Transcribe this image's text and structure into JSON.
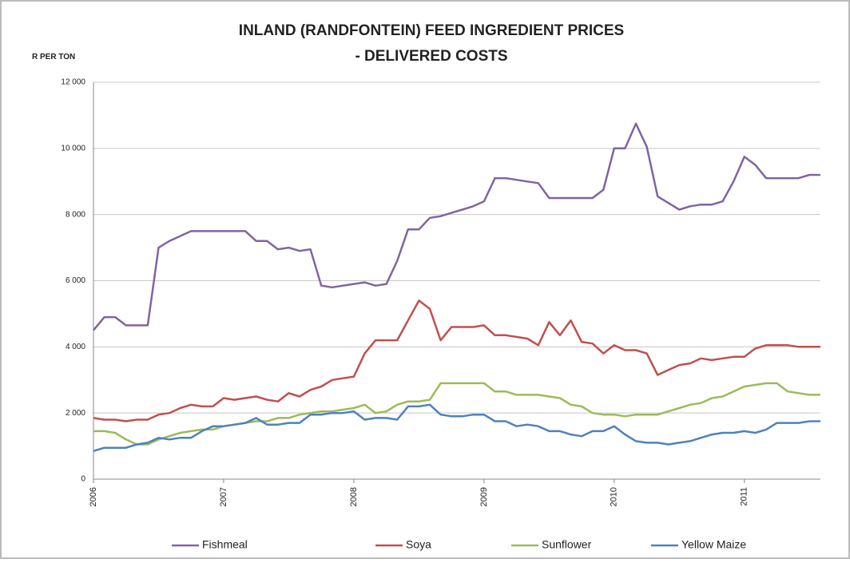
{
  "chart_data": {
    "type": "line",
    "title": "INLAND (RANDFONTEIN) FEED INGREDIENT PRICES",
    "subtitle": "- DELIVERED COSTS",
    "y_label": "R PER TON",
    "categories": [
      "2006",
      null,
      null,
      null,
      null,
      null,
      null,
      null,
      null,
      null,
      null,
      null,
      "2007",
      null,
      null,
      null,
      null,
      null,
      null,
      null,
      null,
      null,
      null,
      null,
      "2008",
      null,
      null,
      null,
      null,
      null,
      null,
      null,
      null,
      null,
      null,
      null,
      "2009",
      null,
      null,
      null,
      null,
      null,
      null,
      null,
      null,
      null,
      null,
      null,
      "2010",
      null,
      null,
      null,
      null,
      null,
      null,
      null,
      null,
      null,
      null,
      null,
      "2011",
      null,
      null,
      null,
      null,
      null,
      null,
      null
    ],
    "ylim": [
      0,
      12000
    ],
    "yticks": [
      0,
      {
        "value": 2000,
        "label": "2 000"
      },
      {
        "value": 4000,
        "label": "4 000"
      },
      {
        "value": 6000,
        "label": "6 000"
      },
      {
        "value": 8000,
        "label": "8 000"
      },
      {
        "value": 10000,
        "label": "10 000"
      },
      {
        "value": 12000,
        "label": "12 000"
      }
    ],
    "grid": true,
    "legend": "bottom",
    "series": [
      {
        "name": "Fishmeal",
        "color": "#8064a2",
        "values": [
          4500,
          4900,
          4900,
          4650,
          4650,
          4650,
          7000,
          7200,
          7350,
          7500,
          7500,
          7500,
          7500,
          7500,
          7500,
          7200,
          7200,
          6950,
          7000,
          6900,
          6950,
          5850,
          5800,
          5850,
          5900,
          5950,
          5850,
          5900,
          6600,
          7550,
          7550,
          7900,
          7950,
          8050,
          8150,
          8250,
          8400,
          9100,
          9100,
          9050,
          9000,
          8950,
          8500,
          8500,
          8500,
          8500,
          8500,
          8750,
          10000,
          10000,
          10750,
          10050,
          8550,
          8350,
          8150,
          8250,
          8300,
          8300,
          8400,
          9000,
          9750,
          9500,
          9100,
          9100,
          9100,
          9100,
          9200,
          9200
        ]
      },
      {
        "name": "Soya",
        "color": "#c0504d",
        "values": [
          1850,
          1800,
          1800,
          1750,
          1800,
          1800,
          1950,
          2000,
          2150,
          2250,
          2200,
          2200,
          2450,
          2400,
          2450,
          2500,
          2400,
          2350,
          2600,
          2500,
          2700,
          2800,
          3000,
          3050,
          3100,
          3800,
          4200,
          4200,
          4200,
          4800,
          5400,
          5150,
          4200,
          4600,
          4600,
          4600,
          4650,
          4350,
          4350,
          4300,
          4250,
          4050,
          4750,
          4350,
          4800,
          4150,
          4100,
          3800,
          4050,
          3900,
          3900,
          3800,
          3150,
          3300,
          3450,
          3500,
          3650,
          3600,
          3650,
          3700,
          3700,
          3950,
          4050,
          4050,
          4050,
          4000,
          4000,
          4000
        ]
      },
      {
        "name": "Sunflower",
        "color": "#9bbb59",
        "values": [
          1450,
          1450,
          1400,
          1200,
          1050,
          1050,
          1200,
          1300,
          1400,
          1450,
          1500,
          1500,
          1600,
          1650,
          1700,
          1750,
          1750,
          1850,
          1850,
          1950,
          2000,
          2050,
          2050,
          2100,
          2150,
          2250,
          2000,
          2050,
          2250,
          2350,
          2350,
          2400,
          2900,
          2900,
          2900,
          2900,
          2900,
          2650,
          2650,
          2550,
          2550,
          2550,
          2500,
          2450,
          2250,
          2200,
          2000,
          1950,
          1950,
          1900,
          1950,
          1950,
          1950,
          2050,
          2150,
          2250,
          2300,
          2450,
          2500,
          2650,
          2800,
          2850,
          2900,
          2900,
          2650,
          2600,
          2550,
          2550
        ]
      },
      {
        "name": "Yellow Maize",
        "color": "#4f81bd",
        "values": [
          850,
          950,
          950,
          950,
          1050,
          1100,
          1250,
          1200,
          1250,
          1250,
          1450,
          1600,
          1600,
          1650,
          1700,
          1850,
          1650,
          1650,
          1700,
          1700,
          1950,
          1950,
          2000,
          2000,
          2050,
          1800,
          1850,
          1850,
          1800,
          2200,
          2200,
          2250,
          1950,
          1900,
          1900,
          1950,
          1950,
          1750,
          1750,
          1600,
          1650,
          1600,
          1450,
          1450,
          1350,
          1300,
          1450,
          1450,
          1600,
          1350,
          1150,
          1100,
          1100,
          1050,
          1100,
          1150,
          1250,
          1350,
          1400,
          1400,
          1450,
          1400,
          1500,
          1700,
          1700,
          1700,
          1750,
          1750
        ]
      }
    ]
  }
}
